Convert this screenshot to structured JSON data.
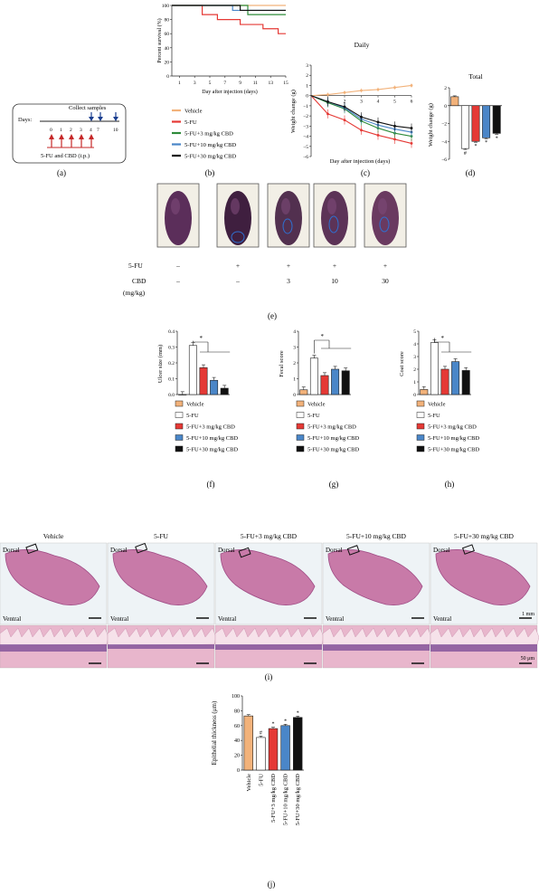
{
  "colors": {
    "vehicle": "#f2b27a",
    "fu": "#e53935",
    "cbd3": "#2e8b3a",
    "cbd10": "#4a86c8",
    "cbd30": "#111111",
    "fu_bar_fill": "#ffffff"
  },
  "panel_letters": [
    "(a)",
    "(b)",
    "(c)",
    "(d)",
    "(e)",
    "(f)",
    "(g)",
    "(h)",
    "(i)",
    "(j)"
  ],
  "panel_a": {
    "days_label": "Days:",
    "ticks": [
      "0",
      "1",
      "2",
      "3",
      "4",
      "7",
      "10"
    ],
    "collect": "Collect samples",
    "dosing": "5-FU and CBD (i.p.)"
  },
  "legend_b": [
    "Vehicle",
    "5-FU",
    "5-FU+3 mg/kg CBD",
    "5-FU+10 mg/kg CBD",
    "5-FU+30 mg/kg CBD"
  ],
  "legend_fgh": [
    "Vehicle",
    "5-FU",
    "5-FU+3 mg/kg CBD",
    "5-FU+10 mg/kg CBD",
    "5-FU+30 mg/kg CBD"
  ],
  "panel_e": {
    "row_labels": [
      "5-FU",
      "CBD",
      "(mg/kg)"
    ],
    "fu": [
      "–",
      "+",
      "+",
      "+",
      "+"
    ],
    "cbd": [
      "–",
      "–",
      "3",
      "10",
      "30"
    ]
  },
  "panel_i": {
    "groups": [
      "Vehicle",
      "5-FU",
      "5-FU+3 mg/kg CBD",
      "5-FU+10 mg/kg CBD",
      "5-FU+30 mg/kg CBD"
    ],
    "dorsal": "Dorsal",
    "ventral": "Ventral",
    "scale_top": "1 mm",
    "scale_bottom": "50 μm"
  },
  "marks": {
    "star": "*",
    "hash": "#"
  },
  "chart_data": [
    {
      "id": "b",
      "type": "line",
      "ylabel": "Percent survival (%)",
      "xlabel": "Day after injection (days)",
      "xticks": [
        "1",
        "3",
        "5",
        "7",
        "9",
        "11",
        "13",
        "15"
      ],
      "yticks": [
        "0",
        "20",
        "40",
        "60",
        "80",
        "100"
      ],
      "xlim": [
        0,
        15
      ],
      "ylim": [
        0,
        100
      ],
      "series": [
        {
          "name": "Vehicle",
          "x": [
            0,
            15
          ],
          "y": [
            100,
            100
          ]
        },
        {
          "name": "5-FU",
          "x": [
            0,
            4,
            4,
            6,
            6,
            9,
            9,
            12,
            12,
            14,
            14,
            15
          ],
          "y": [
            100,
            100,
            87,
            87,
            80,
            80,
            73,
            73,
            67,
            67,
            60,
            60
          ]
        },
        {
          "name": "5-FU+3 mg/kg CBD",
          "x": [
            0,
            10,
            10,
            15
          ],
          "y": [
            100,
            100,
            87,
            87
          ]
        },
        {
          "name": "5-FU+10 mg/kg CBD",
          "x": [
            0,
            8,
            8,
            15
          ],
          "y": [
            100,
            100,
            93,
            93
          ]
        },
        {
          "name": "5-FU+30 mg/kg CBD",
          "x": [
            0,
            9,
            9,
            15
          ],
          "y": [
            100,
            100,
            93,
            93
          ]
        }
      ]
    },
    {
      "id": "c",
      "type": "line",
      "title": "Daily",
      "ylabel": "Weight change (g)",
      "xlabel": "Day after injection (days)",
      "xticks": [
        "1",
        "2",
        "3",
        "4",
        "5",
        "6"
      ],
      "yticks": [
        "−6",
        "−5",
        "−4",
        "−3",
        "−2",
        "−1",
        "0",
        "1",
        "2",
        "3"
      ],
      "xlim": [
        0,
        6
      ],
      "ylim": [
        -6,
        3
      ],
      "series": [
        {
          "name": "Vehicle",
          "x": [
            0,
            1,
            2,
            3,
            4,
            5,
            6
          ],
          "y": [
            0,
            0.1,
            0.3,
            0.5,
            0.6,
            0.8,
            1.0
          ]
        },
        {
          "name": "5-FU",
          "x": [
            0,
            1,
            2,
            3,
            4,
            5,
            6
          ],
          "y": [
            0,
            -1.8,
            -2.4,
            -3.4,
            -3.9,
            -4.3,
            -4.7
          ]
        },
        {
          "name": "5-FU+3 mg/kg CBD",
          "x": [
            0,
            1,
            2,
            3,
            4,
            5,
            6
          ],
          "y": [
            0,
            -0.7,
            -1.3,
            -2.5,
            -3.2,
            -3.7,
            -4.0
          ]
        },
        {
          "name": "5-FU+10 mg/kg CBD",
          "x": [
            0,
            1,
            2,
            3,
            4,
            5,
            6
          ],
          "y": [
            0,
            -0.6,
            -1.2,
            -2.3,
            -2.9,
            -3.3,
            -3.6
          ]
        },
        {
          "name": "5-FU+30 mg/kg CBD",
          "x": [
            0,
            1,
            2,
            3,
            4,
            5,
            6
          ],
          "y": [
            0,
            -0.6,
            -1.1,
            -2.1,
            -2.6,
            -3.0,
            -3.2
          ]
        }
      ]
    },
    {
      "id": "d",
      "type": "bar",
      "title": "Total",
      "ylabel": "Weight change (g)",
      "yticks": [
        "−6",
        "−4",
        "−2",
        "0",
        "2"
      ],
      "ylim": [
        -6,
        2
      ],
      "categories": [
        "Vehicle",
        "5-FU",
        "5-FU+3 mg/kg CBD",
        "5-FU+10 mg/kg CBD",
        "5-FU+30 mg/kg CBD"
      ],
      "values": [
        1.0,
        -4.8,
        -4.0,
        -3.6,
        -3.1
      ],
      "marks": [
        "",
        "#",
        "*",
        "*",
        "*"
      ]
    },
    {
      "id": "f",
      "type": "bar",
      "ylabel": "Ulcer size (mm)",
      "yticks": [
        "0.0",
        "0.1",
        "0.2",
        "0.3",
        "0.4"
      ],
      "ylim": [
        0,
        0.4
      ],
      "categories": [
        "Vehicle",
        "5-FU",
        "5-FU+3 mg/kg CBD",
        "5-FU+10 mg/kg CBD",
        "5-FU+30 mg/kg CBD"
      ],
      "values": [
        0,
        0.31,
        0.17,
        0.09,
        0.04
      ],
      "significance": "*"
    },
    {
      "id": "g",
      "type": "bar",
      "ylabel": "Fecal score",
      "yticks": [
        "0",
        "1",
        "2",
        "3",
        "4"
      ],
      "ylim": [
        0,
        4
      ],
      "categories": [
        "Vehicle",
        "5-FU",
        "5-FU+3 mg/kg CBD",
        "5-FU+10 mg/kg CBD",
        "5-FU+30 mg/kg CBD"
      ],
      "values": [
        0.3,
        2.3,
        1.2,
        1.6,
        1.5
      ],
      "significance": "*"
    },
    {
      "id": "h",
      "type": "bar",
      "ylabel": "Coat score",
      "yticks": [
        "0",
        "1",
        "2",
        "3",
        "4",
        "5"
      ],
      "ylim": [
        0,
        5
      ],
      "categories": [
        "Vehicle",
        "5-FU",
        "5-FU+3 mg/kg CBD",
        "5-FU+10 mg/kg CBD",
        "5-FU+30 mg/kg CBD"
      ],
      "values": [
        0.4,
        4.1,
        2.0,
        2.6,
        1.9
      ],
      "significance": "*"
    },
    {
      "id": "j",
      "type": "bar",
      "ylabel": "Epithelial thickness (μm)",
      "yticks": [
        "0",
        "20",
        "40",
        "60",
        "80",
        "100"
      ],
      "ylim": [
        0,
        100
      ],
      "categories": [
        "Vehicle",
        "5-FU",
        "5-FU+3 mg/kg CBD",
        "5-FU+10 mg/kg CBD",
        "5-FU+30 mg/kg CBD"
      ],
      "values": [
        73,
        44,
        56,
        60,
        71
      ],
      "marks": [
        "",
        "#",
        "*",
        "*",
        "*"
      ]
    }
  ]
}
